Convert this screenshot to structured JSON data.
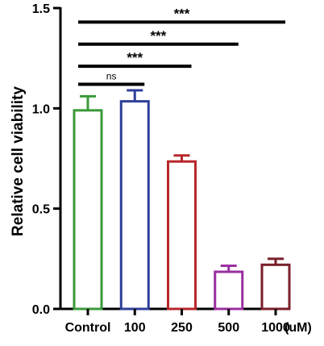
{
  "chart_data": {
    "type": "bar",
    "ylabel": "Relative cell viability",
    "xunit": "(uM)",
    "ylim": [
      0,
      1.5
    ],
    "yticks": [
      {
        "value": 0.0,
        "label": "0.0"
      },
      {
        "value": 0.5,
        "label": "0.5"
      },
      {
        "value": 1.0,
        "label": "1.0"
      },
      {
        "value": 1.5,
        "label": "1.5"
      }
    ],
    "categories": [
      "Control",
      "100",
      "250",
      "500",
      "1000"
    ],
    "values": [
      0.99,
      1.035,
      0.735,
      0.185,
      0.22
    ],
    "errors": [
      0.07,
      0.055,
      0.03,
      0.03,
      0.03
    ],
    "colors": [
      "#3a9a3a",
      "#2f3f9a",
      "#b8262a",
      "#9b2fa0",
      "#7a1f2a"
    ],
    "grid": false,
    "comparisons": [
      {
        "from": "Control",
        "to": "100",
        "label": "ns",
        "y": 1.12
      },
      {
        "from": "Control",
        "to": "250",
        "label": "***",
        "y": 1.21
      },
      {
        "from": "Control",
        "to": "500",
        "label": "***",
        "y": 1.32
      },
      {
        "from": "Control",
        "to": "1000",
        "label": "***",
        "y": 1.43
      }
    ]
  }
}
